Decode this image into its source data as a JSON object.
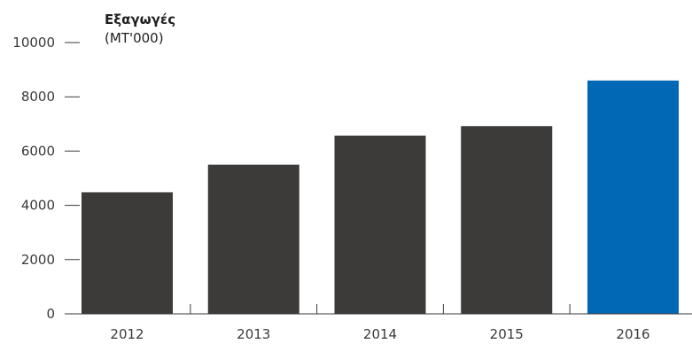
{
  "chart_data": {
    "type": "bar",
    "title": "Εξαγωγές",
    "subtitle": "(MT'000)",
    "categories": [
      "2012",
      "2013",
      "2014",
      "2015",
      "2016"
    ],
    "values": [
      4480,
      5500,
      6570,
      6920,
      8600
    ],
    "ylim": [
      0,
      10000
    ],
    "yticks": [
      0,
      2000,
      4000,
      6000,
      8000,
      10000
    ],
    "ytick_labels": [
      "0",
      "2000",
      "4000",
      "6000",
      "8000",
      "10000"
    ],
    "grid": false,
    "legend": "none",
    "colors": {
      "default_bar": "#3c3b3a",
      "highlight_bar": "#0068b4",
      "axis": "#3a3a3a",
      "text": "#1f1f1f"
    },
    "highlight_index": 4
  }
}
